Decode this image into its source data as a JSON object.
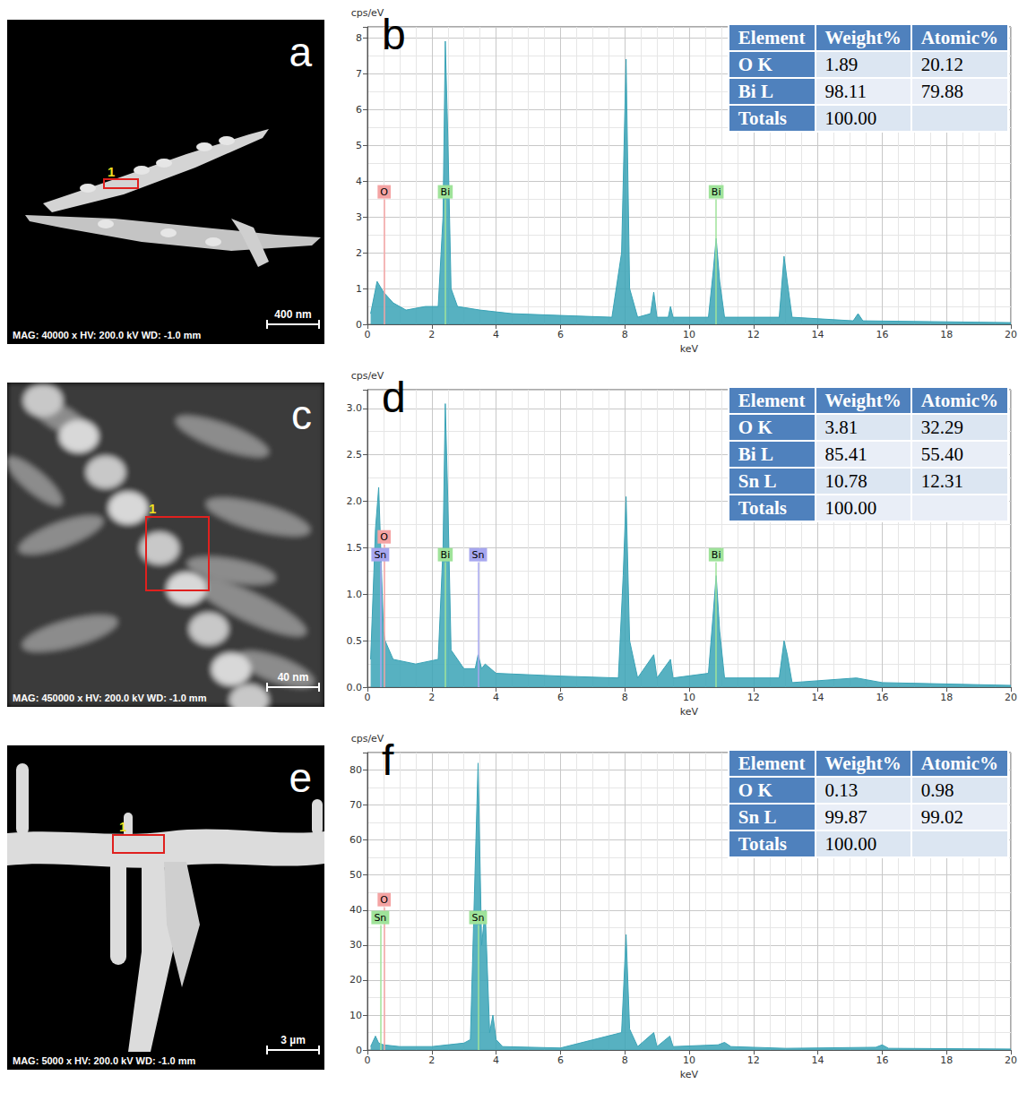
{
  "images": [
    {
      "letter": "a",
      "caption": "MAG: 40000 x  HV: 200.0 kV  WD: -1.0 mm",
      "scale_bar": "400 nm",
      "marker": "1"
    },
    {
      "letter": "c",
      "caption": "MAG: 450000 x  HV: 200.0 kV  WD: -1.0 mm",
      "scale_bar": "40 nm",
      "marker": "1"
    },
    {
      "letter": "e",
      "caption": "MAG: 5000 x  HV: 200.0 kV  WD: -1.0 mm",
      "scale_bar": "3 µm",
      "marker": "1"
    }
  ],
  "chart_data": [
    {
      "type": "line",
      "letter": "b",
      "y_title": "cps/eV",
      "x_title": "keV",
      "color": "#3aa3b6",
      "grid": true,
      "xlim": [
        0,
        20
      ],
      "xticks": [
        0,
        2,
        4,
        6,
        8,
        10,
        12,
        14,
        16,
        18,
        20
      ],
      "ylim": [
        0,
        8.3
      ],
      "yticks": [
        0,
        1,
        2,
        3,
        4,
        5,
        6,
        7,
        8
      ],
      "x": [
        0.1,
        0.3,
        0.5,
        0.8,
        1.2,
        1.8,
        2.2,
        2.35,
        2.42,
        2.5,
        2.6,
        2.8,
        3.5,
        4.5,
        6,
        7.6,
        7.9,
        8.04,
        8.15,
        8.4,
        8.8,
        8.9,
        9.0,
        9.35,
        9.42,
        9.5,
        10.6,
        10.75,
        10.84,
        10.95,
        11.1,
        12.8,
        12.95,
        13.05,
        13.2,
        15.1,
        15.25,
        15.4,
        20
      ],
      "values": [
        0.3,
        1.2,
        0.9,
        0.6,
        0.4,
        0.5,
        0.5,
        3,
        7.9,
        5.2,
        1,
        0.5,
        0.4,
        0.3,
        0.25,
        0.2,
        2,
        7.4,
        1,
        0.2,
        0.3,
        0.9,
        0.2,
        0.2,
        0.5,
        0.2,
        0.2,
        1.5,
        2.4,
        1.2,
        0.2,
        0.2,
        1.9,
        1.2,
        0.2,
        0.1,
        0.3,
        0.1,
        0.05
      ],
      "element_lines": [
        {
          "label": "O",
          "x": 0.52,
          "color": "#f4a3a3"
        },
        {
          "label": "Bi",
          "x": 2.42,
          "color": "#9fe39a"
        },
        {
          "label": "Bi",
          "x": 10.84,
          "color": "#9fe39a"
        }
      ],
      "table": {
        "header": [
          "Element",
          "Weight%",
          "Atomic%"
        ],
        "rows": [
          [
            "O K",
            "1.89",
            "20.12"
          ],
          [
            "Bi L",
            "98.11",
            "79.88"
          ],
          [
            "Totals",
            "100.00"
          ]
        ]
      }
    },
    {
      "type": "line",
      "letter": "d",
      "y_title": "cps/eV",
      "x_title": "keV",
      "color": "#3aa3b6",
      "grid": true,
      "xlim": [
        0,
        20
      ],
      "xticks": [
        0,
        2,
        4,
        6,
        8,
        10,
        12,
        14,
        16,
        18,
        20
      ],
      "ylim": [
        0,
        3.2
      ],
      "yticks": [
        {
          "value": 0,
          "label": "0.0"
        },
        {
          "value": 0.5,
          "label": "0.5"
        },
        {
          "value": 1,
          "label": "1.0"
        },
        {
          "value": 1.5,
          "label": "1.5"
        },
        {
          "value": 2,
          "label": "2.0"
        },
        {
          "value": 2.5,
          "label": "2.5"
        },
        {
          "value": 3,
          "label": "3.0"
        }
      ],
      "x": [
        0.1,
        0.25,
        0.35,
        0.5,
        0.55,
        0.8,
        1.5,
        2.2,
        2.35,
        2.42,
        2.5,
        2.6,
        3.0,
        3.35,
        3.44,
        3.55,
        3.66,
        4,
        6,
        7.8,
        7.95,
        8.04,
        8.15,
        8.4,
        8.9,
        9.0,
        9.42,
        9.5,
        10.6,
        10.75,
        10.84,
        10.95,
        11.1,
        12.8,
        12.95,
        13.05,
        13.2,
        15.2,
        16,
        20
      ],
      "values": [
        0.3,
        1.7,
        2.15,
        0.6,
        0.5,
        0.3,
        0.25,
        0.3,
        1.5,
        3.05,
        2.0,
        0.4,
        0.2,
        0.2,
        0.35,
        0.2,
        0.25,
        0.15,
        0.12,
        0.1,
        1.2,
        2.05,
        0.5,
        0.1,
        0.35,
        0.1,
        0.3,
        0.1,
        0.15,
        0.8,
        1.2,
        0.6,
        0.1,
        0.1,
        0.5,
        0.35,
        0.05,
        0.1,
        0.05,
        0.02
      ],
      "element_lines": [
        {
          "label": "Sn",
          "x": 0.4,
          "color": "#a7a7ef"
        },
        {
          "label": "O",
          "x": 0.52,
          "color": "#f4a3a3"
        },
        {
          "label": "Bi",
          "x": 2.42,
          "color": "#9fe39a"
        },
        {
          "label": "Sn",
          "x": 3.44,
          "color": "#a7a7ef"
        },
        {
          "label": "Bi",
          "x": 10.84,
          "color": "#9fe39a"
        }
      ],
      "table": {
        "header": [
          "Element",
          "Weight%",
          "Atomic%"
        ],
        "rows": [
          [
            "O K",
            "3.81",
            "32.29"
          ],
          [
            "Bi L",
            "85.41",
            "55.40"
          ],
          [
            "Sn L",
            "10.78",
            "12.31"
          ],
          [
            "Totals",
            "100.00"
          ]
        ]
      }
    },
    {
      "type": "line",
      "letter": "f",
      "y_title": "cps/eV",
      "x_title": "keV",
      "color": "#3aa3b6",
      "grid": true,
      "xlim": [
        0,
        20
      ],
      "xticks": [
        0,
        2,
        4,
        6,
        8,
        10,
        12,
        14,
        16,
        18,
        20
      ],
      "ylim": [
        0,
        85
      ],
      "yticks": [
        0,
        10,
        20,
        30,
        40,
        50,
        60,
        70,
        80
      ],
      "x": [
        0.1,
        0.25,
        0.35,
        0.5,
        1,
        2,
        3,
        3.2,
        3.44,
        3.55,
        3.66,
        3.8,
        3.9,
        4.0,
        4.2,
        6,
        7.9,
        8.04,
        8.15,
        8.4,
        8.9,
        9.0,
        9.4,
        9.5,
        10.9,
        11.1,
        11.3,
        13,
        15.8,
        16,
        16.2,
        20
      ],
      "values": [
        1,
        4,
        2,
        1.5,
        1,
        1,
        2,
        3,
        82,
        30,
        40,
        5,
        10,
        3,
        1,
        0.6,
        5,
        33,
        6,
        1,
        5,
        1,
        4,
        1,
        1.5,
        2.2,
        1,
        0.5,
        0.8,
        1.5,
        0.5,
        0.3
      ],
      "element_lines": [
        {
          "label": "Sn",
          "x": 0.4,
          "color": "#9fe39a"
        },
        {
          "label": "O",
          "x": 0.52,
          "color": "#f4a3a3"
        },
        {
          "label": "Sn",
          "x": 3.44,
          "color": "#9fe39a"
        }
      ],
      "table": {
        "header": [
          "Element",
          "Weight%",
          "Atomic%"
        ],
        "rows": [
          [
            "O K",
            "0.13",
            "0.98"
          ],
          [
            "Sn L",
            "99.87",
            "99.02"
          ],
          [
            "Totals",
            "100.00"
          ]
        ]
      }
    }
  ]
}
